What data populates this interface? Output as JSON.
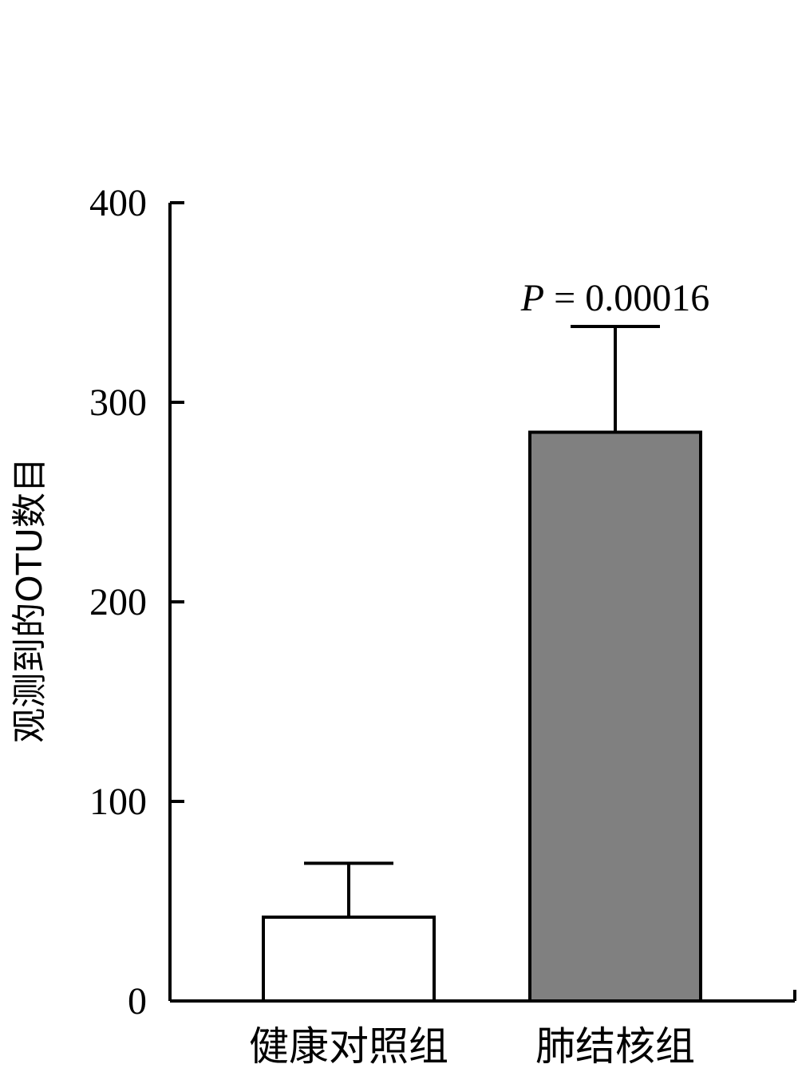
{
  "chart_data": {
    "type": "bar",
    "title": "",
    "xlabel": "",
    "ylabel": "观测到的OTU数目",
    "categories": [
      "健康对照组",
      "肺结核组"
    ],
    "values": [
      42,
      285
    ],
    "error_upper": [
      69,
      338
    ],
    "bar_colors": [
      "#ffffff",
      "#808080"
    ],
    "ylim": [
      0,
      400
    ],
    "yticks": [
      0,
      100,
      200,
      300,
      400
    ],
    "ytick_labels": [
      "0",
      "100",
      "200",
      "300",
      "400"
    ],
    "grid": false,
    "annotation": {
      "p_symbol": "P",
      "text": " = 0.00016",
      "category_index": 1
    }
  }
}
